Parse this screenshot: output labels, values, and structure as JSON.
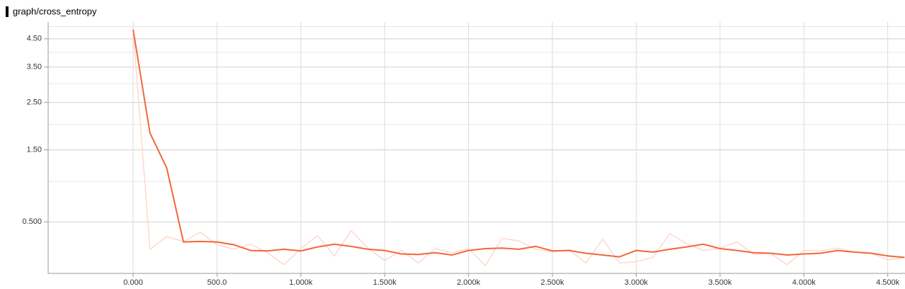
{
  "chart_data": {
    "type": "line",
    "title": "graph/cross_entropy",
    "log_scale": true,
    "grid": true,
    "x": [
      0,
      100,
      200,
      300,
      400,
      500,
      600,
      700,
      800,
      900,
      1000,
      1100,
      1200,
      1300,
      1400,
      1500,
      1600,
      1700,
      1800,
      1900,
      2000,
      2100,
      2200,
      2300,
      2400,
      2500,
      2600,
      2700,
      2800,
      2900,
      3000,
      3100,
      3200,
      3300,
      3400,
      3500,
      3600,
      3700,
      3800,
      3900,
      4000,
      4100,
      4200,
      4300,
      4400,
      4500,
      4600
    ],
    "series": [
      {
        "color": "#fdd9cd",
        "values": [
          4.87,
          0.235,
          0.35,
          0.305,
          0.395,
          0.275,
          0.235,
          0.28,
          0.205,
          0.107,
          0.24,
          0.36,
          0.178,
          0.41,
          0.245,
          0.14,
          0.224,
          0.12,
          0.24,
          0.205,
          0.24,
          0.1,
          0.334,
          0.31,
          0.235,
          0.21,
          0.23,
          0.12,
          0.325,
          0.12,
          0.13,
          0.165,
          0.38,
          0.285,
          0.224,
          0.245,
          0.3,
          0.19,
          0.2,
          0.107,
          0.224,
          0.22,
          0.245,
          0.21,
          0.2,
          0.145,
          0.165
        ]
      },
      {
        "color": "#f4663a",
        "values": [
          4.87,
          1.82,
          1.2,
          0.3,
          0.305,
          0.3,
          0.275,
          0.224,
          0.22,
          0.235,
          0.22,
          0.255,
          0.28,
          0.26,
          0.235,
          0.224,
          0.194,
          0.19,
          0.205,
          0.185,
          0.224,
          0.24,
          0.245,
          0.235,
          0.26,
          0.22,
          0.224,
          0.2,
          0.185,
          0.17,
          0.224,
          0.21,
          0.235,
          0.255,
          0.28,
          0.24,
          0.224,
          0.205,
          0.2,
          0.185,
          0.194,
          0.2,
          0.224,
          0.21,
          0.2,
          0.178,
          0.165
        ]
      }
    ],
    "xlim": [
      -507,
      4603
    ],
    "xticks": [
      {
        "value": 0,
        "label": "0.000"
      },
      {
        "value": 500,
        "label": "500.0"
      },
      {
        "value": 1000,
        "label": "1.000k"
      },
      {
        "value": 1500,
        "label": "1.500k"
      },
      {
        "value": 2000,
        "label": "2.000k"
      },
      {
        "value": 2500,
        "label": "2.500k"
      },
      {
        "value": 3000,
        "label": "3.000k"
      },
      {
        "value": 3500,
        "label": "3.500k"
      },
      {
        "value": 4000,
        "label": "4.000k"
      },
      {
        "value": 4500,
        "label": "4.500k"
      }
    ],
    "ylim": [
      0.04,
      5.2
    ],
    "yticks": [
      {
        "value": 4.5,
        "label": "4.50"
      },
      {
        "value": 3.5,
        "label": "3.50"
      },
      {
        "value": 2.5,
        "label": "2.50"
      },
      {
        "value": 1.5,
        "label": "1.50"
      },
      {
        "value": 0.5,
        "label": "0.500"
      }
    ],
    "minor_yticks": [
      5,
      4,
      3,
      2,
      1
    ]
  }
}
